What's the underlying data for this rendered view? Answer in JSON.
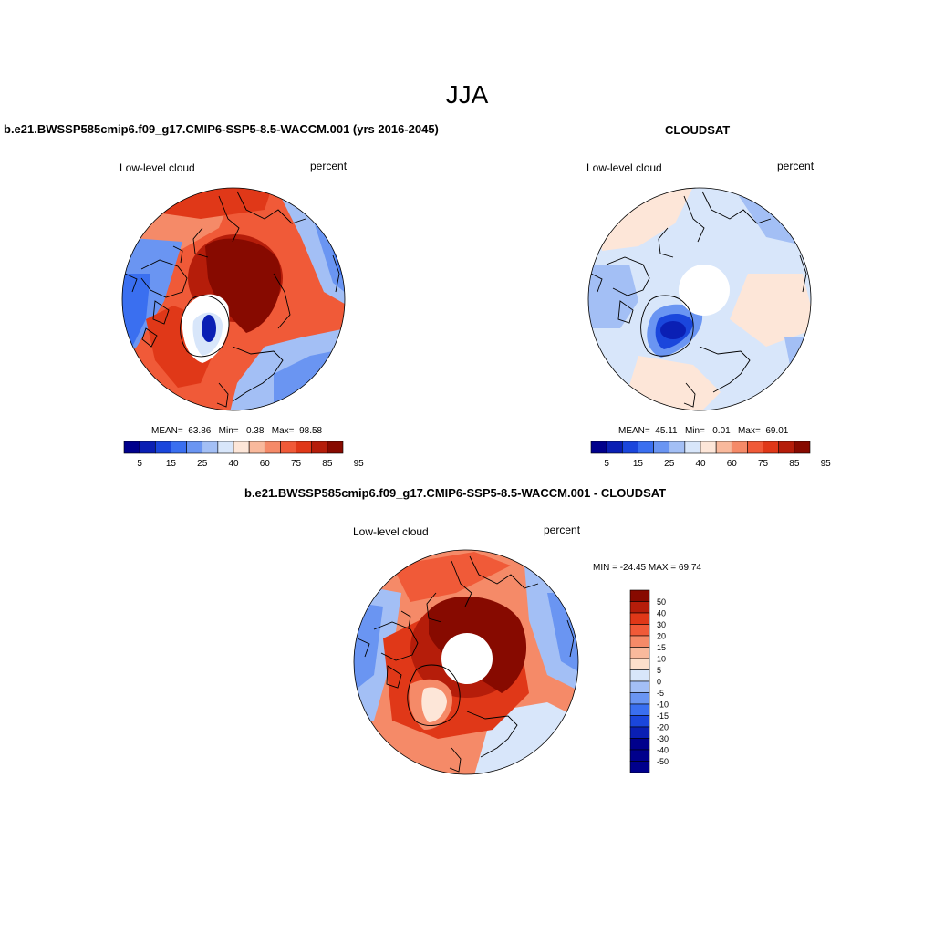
{
  "figure": {
    "title": "JJA"
  },
  "panels": [
    {
      "id": "model",
      "title": "b.e21.BWSSP585cmip6.f09_g17.CMIP6-SSP5-8.5-WACCM.001 (yrs 2016-2045)",
      "left_label": "Low-level cloud",
      "right_label": "percent",
      "stats": {
        "mean_label": "MEAN=",
        "mean": "63.86",
        "min_label": "Min=",
        "min": "0.38",
        "max_label": "Max=",
        "max": "98.58"
      },
      "colorbar_ticks": [
        "5",
        "15",
        "25",
        "40",
        "60",
        "75",
        "85",
        "95"
      ]
    },
    {
      "id": "obs",
      "title": "CLOUDSAT",
      "left_label": "Low-level cloud",
      "right_label": "percent",
      "stats": {
        "mean_label": "MEAN=",
        "mean": "45.11",
        "min_label": "Min=",
        "min": "0.01",
        "max_label": "Max=",
        "max": "69.01"
      },
      "colorbar_ticks": [
        "5",
        "15",
        "25",
        "40",
        "60",
        "75",
        "85",
        "95"
      ]
    },
    {
      "id": "diff",
      "title": "b.e21.BWSSP585cmip6.f09_g17.CMIP6-SSP5-8.5-WACCM.001 - CLOUDSAT",
      "left_label": "Low-level cloud",
      "right_label": "percent",
      "minmax": "MIN = -24.45 MAX =  69.74",
      "colorbar_ticks": [
        "50",
        "40",
        "30",
        "20",
        "15",
        "10",
        "5",
        "0",
        "-5",
        "-10",
        "-15",
        "-20",
        "-30",
        "-40",
        "-50"
      ]
    }
  ],
  "colors": {
    "abs_scale": [
      "#00008c",
      "#0a1fb4",
      "#1a46dc",
      "#3a6ff0",
      "#6a95f2",
      "#a3bff5",
      "#d8e6fa",
      "#fde6d8",
      "#f9b99c",
      "#f58a68",
      "#f05a38",
      "#e03818",
      "#b51d0a",
      "#870a00"
    ],
    "diff_scale": [
      "#870a00",
      "#b51d0a",
      "#e03818",
      "#f05a38",
      "#f58a68",
      "#f9b99c",
      "#fde0cc",
      "#d8e6fa",
      "#a3bff5",
      "#6a95f2",
      "#3a6ff0",
      "#1a46dc",
      "#0a1fb4",
      "#00008c"
    ],
    "land_line": "#000000",
    "background": "#ffffff"
  }
}
